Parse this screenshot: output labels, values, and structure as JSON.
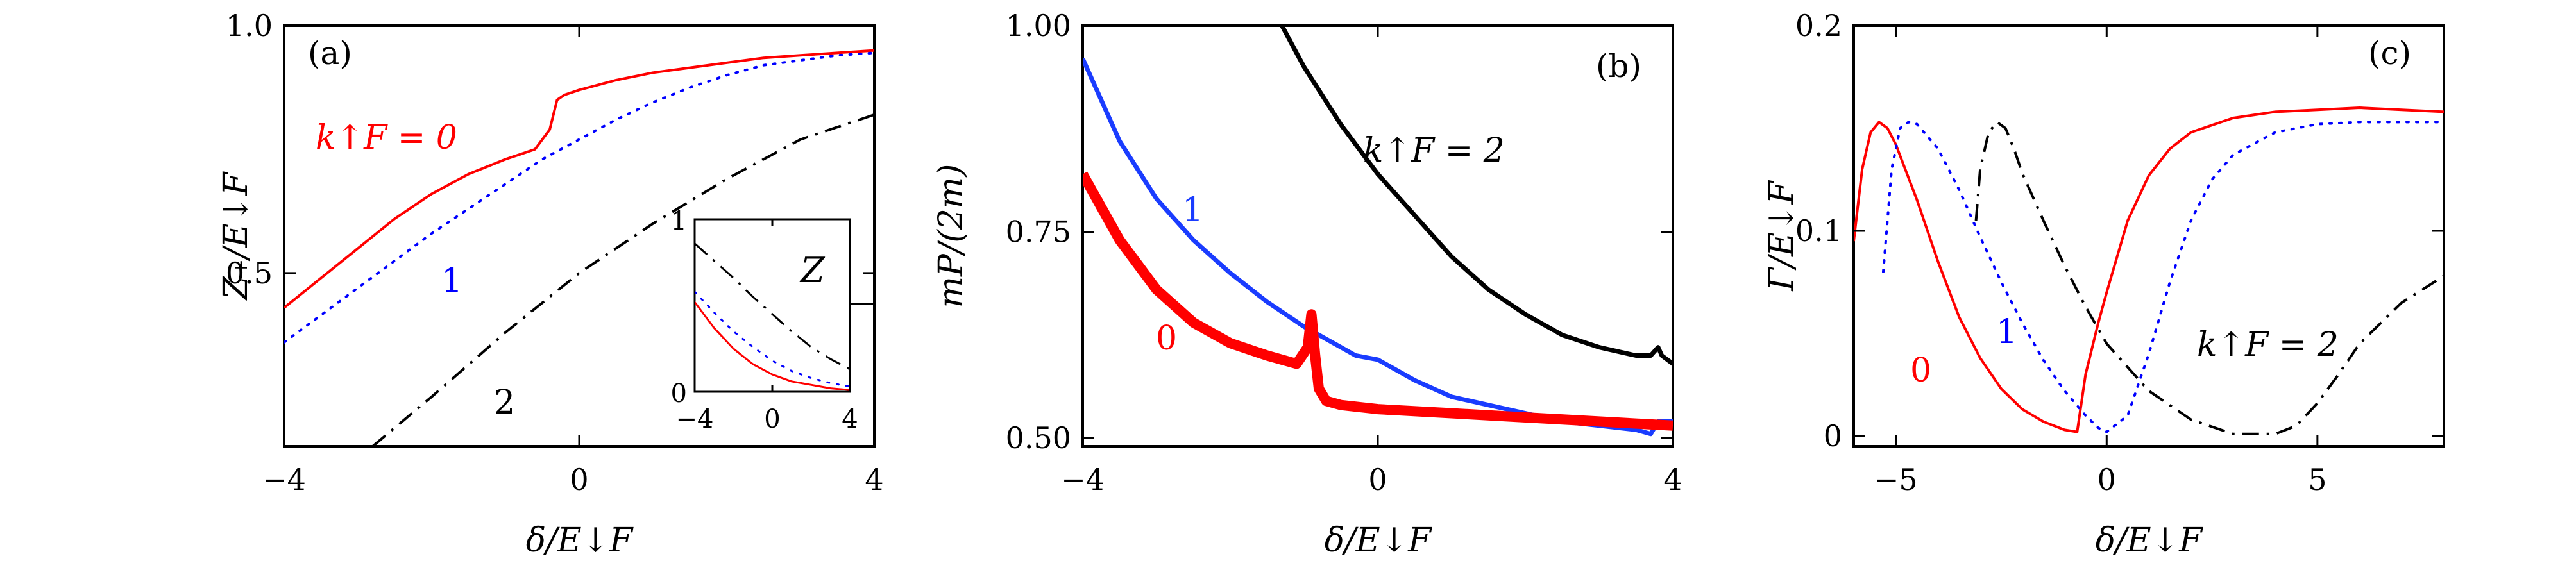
{
  "chart_data": [
    {
      "type": "line",
      "panel_label": "(a)",
      "xlabel": "δ/E↓F",
      "ylabel": "Z₊/E↓F",
      "xlim": [
        -4,
        4
      ],
      "ylim": [
        0.15,
        1.0
      ],
      "xticks": [
        "-4",
        "0",
        "4"
      ],
      "yticks": [
        "0.5",
        "1.0"
      ],
      "series": [
        {
          "label": "k↑F = 0",
          "color": "#ff0000",
          "style": "solid",
          "x": [
            -4,
            -3.5,
            -3,
            -2.5,
            -2,
            -1.5,
            -1,
            -0.8,
            -0.6,
            -0.4,
            -0.3,
            -0.2,
            0,
            0.5,
            1,
            1.5,
            2,
            2.5,
            3,
            3.5,
            4
          ],
          "y": [
            0.43,
            0.49,
            0.55,
            0.61,
            0.66,
            0.7,
            0.73,
            0.74,
            0.75,
            0.79,
            0.85,
            0.86,
            0.87,
            0.89,
            0.905,
            0.915,
            0.925,
            0.935,
            0.94,
            0.945,
            0.95
          ]
        },
        {
          "label": "1",
          "color": "#0000ff",
          "style": "dotted",
          "x": [
            -4,
            -3,
            -2,
            -1,
            -0.5,
            0,
            0.5,
            1,
            1.5,
            2,
            2.5,
            3,
            3.5,
            4
          ],
          "y": [
            0.36,
            0.47,
            0.58,
            0.68,
            0.73,
            0.77,
            0.81,
            0.845,
            0.875,
            0.9,
            0.92,
            0.93,
            0.94,
            0.945
          ]
        },
        {
          "label": "2",
          "color": "#000000",
          "style": "dashdot",
          "x": [
            -2.8,
            -2,
            -1,
            0,
            1,
            2,
            3,
            4
          ],
          "y": [
            0.15,
            0.25,
            0.38,
            0.5,
            0.6,
            0.69,
            0.77,
            0.82
          ]
        }
      ],
      "inset": {
        "ylabel": "Z",
        "xlim": [
          -4,
          4
        ],
        "ylim": [
          0,
          1
        ],
        "xticks": [
          "-4",
          "0",
          "4"
        ],
        "yticks": [
          "0",
          "1"
        ],
        "series": [
          {
            "color": "#000000",
            "style": "dashdot",
            "x": [
              -4,
              -3,
              -2,
              -1,
              0,
              1,
              2,
              3,
              4
            ],
            "y": [
              0.86,
              0.76,
              0.66,
              0.55,
              0.45,
              0.35,
              0.26,
              0.19,
              0.13
            ]
          },
          {
            "color": "#0000ff",
            "style": "dotted",
            "x": [
              -4,
              -3,
              -2,
              -1,
              0,
              1,
              2,
              3,
              4
            ],
            "y": [
              0.58,
              0.46,
              0.35,
              0.26,
              0.18,
              0.12,
              0.08,
              0.05,
              0.03
            ]
          },
          {
            "color": "#ff0000",
            "style": "solid",
            "x": [
              -4,
              -3,
              -2,
              -1,
              0,
              1,
              2,
              3,
              4
            ],
            "y": [
              0.52,
              0.37,
              0.25,
              0.16,
              0.1,
              0.06,
              0.04,
              0.02,
              0.01
            ]
          }
        ]
      }
    },
    {
      "type": "line",
      "panel_label": "(b)",
      "xlabel": "δ/E↓F",
      "ylabel": "mP/(2m)",
      "xlim": [
        -4,
        4
      ],
      "ylim": [
        0.49,
        1.0
      ],
      "xticks": [
        "-4",
        "0",
        "4"
      ],
      "yticks": [
        "0.50",
        "0.75",
        "1.00"
      ],
      "series": [
        {
          "label": "k↑F = 2",
          "color": "#000000",
          "style": "solid",
          "width": 7,
          "x": [
            -1.3,
            -1,
            -0.5,
            0,
            0.5,
            1,
            1.5,
            2,
            2.5,
            3,
            3.5,
            3.7,
            3.8,
            3.85,
            4
          ],
          "y": [
            1.0,
            0.95,
            0.88,
            0.82,
            0.77,
            0.72,
            0.68,
            0.65,
            0.625,
            0.61,
            0.6,
            0.6,
            0.61,
            0.6,
            0.59
          ]
        },
        {
          "label": "1",
          "color": "#1a3cff",
          "style": "solid",
          "width": 7,
          "x": [
            -4,
            -3.5,
            -3,
            -2.5,
            -2,
            -1.5,
            -1,
            -0.5,
            -0.3,
            0,
            0.5,
            1,
            1.5,
            2,
            2.5,
            3,
            3.5,
            3.7,
            3.8,
            4
          ],
          "y": [
            0.96,
            0.86,
            0.79,
            0.74,
            0.7,
            0.665,
            0.635,
            0.61,
            0.6,
            0.595,
            0.57,
            0.55,
            0.54,
            0.53,
            0.52,
            0.515,
            0.51,
            0.505,
            0.52,
            0.52
          ]
        },
        {
          "label": "0",
          "color": "#ff0000",
          "style": "solid",
          "width": 16,
          "x": [
            -4,
            -3.5,
            -3,
            -2.5,
            -2,
            -1.5,
            -1.1,
            -0.95,
            -0.9,
            -0.85,
            -0.8,
            -0.7,
            -0.5,
            0,
            1,
            2,
            3,
            4
          ],
          "y": [
            0.82,
            0.74,
            0.68,
            0.64,
            0.615,
            0.6,
            0.59,
            0.61,
            0.65,
            0.6,
            0.56,
            0.545,
            0.54,
            0.535,
            0.53,
            0.525,
            0.52,
            0.515
          ]
        }
      ]
    },
    {
      "type": "line",
      "panel_label": "(c)",
      "xlabel": "δ/E↓F",
      "ylabel": "Γ/E↓F",
      "xlim": [
        -6,
        8
      ],
      "ylim": [
        -0.005,
        0.2
      ],
      "xticks": [
        "-5",
        "0",
        "5"
      ],
      "yticks": [
        "0",
        "0.1",
        "0.2"
      ],
      "series": [
        {
          "label": "0",
          "color": "#ff0000",
          "style": "solid",
          "x": [
            -6,
            -5.8,
            -5.6,
            -5.4,
            -5.2,
            -5,
            -4.5,
            -4,
            -3.5,
            -3,
            -2.5,
            -2,
            -1.5,
            -1,
            -0.7,
            -0.5,
            -0.2,
            0,
            0.5,
            1,
            1.5,
            2,
            3,
            4,
            5,
            6,
            7,
            8
          ],
          "y": [
            0.095,
            0.13,
            0.148,
            0.153,
            0.15,
            0.142,
            0.115,
            0.085,
            0.058,
            0.038,
            0.023,
            0.013,
            0.007,
            0.003,
            0.002,
            0.03,
            0.055,
            0.07,
            0.105,
            0.127,
            0.14,
            0.148,
            0.155,
            0.158,
            0.159,
            0.16,
            0.159,
            0.158
          ]
        },
        {
          "label": "1",
          "color": "#0000ff",
          "style": "dotted",
          "x": [
            -5.3,
            -5.1,
            -4.9,
            -4.7,
            -4.5,
            -4,
            -3.5,
            -3,
            -2.5,
            -2,
            -1.5,
            -1,
            -0.5,
            -0.2,
            0,
            0.5,
            1,
            1.5,
            2,
            2.5,
            3,
            4,
            5,
            6,
            7,
            8
          ],
          "y": [
            0.08,
            0.13,
            0.15,
            0.153,
            0.152,
            0.14,
            0.12,
            0.097,
            0.075,
            0.055,
            0.037,
            0.022,
            0.01,
            0.004,
            0.002,
            0.01,
            0.04,
            0.075,
            0.105,
            0.125,
            0.137,
            0.148,
            0.152,
            0.153,
            0.153,
            0.153
          ]
        },
        {
          "label": "k↑F = 2",
          "color": "#000000",
          "style": "dashdot",
          "x": [
            -3.1,
            -3,
            -2.8,
            -2.6,
            -2.4,
            -2.2,
            -2,
            -1.5,
            -1,
            -0.5,
            0,
            1,
            2,
            3,
            4,
            4.5,
            5,
            5.5,
            6,
            7,
            8
          ],
          "y": [
            0.105,
            0.13,
            0.148,
            0.153,
            0.15,
            0.14,
            0.128,
            0.105,
            0.083,
            0.063,
            0.045,
            0.022,
            0.008,
            0.001,
            0.001,
            0.005,
            0.016,
            0.03,
            0.045,
            0.065,
            0.078
          ]
        }
      ]
    }
  ]
}
